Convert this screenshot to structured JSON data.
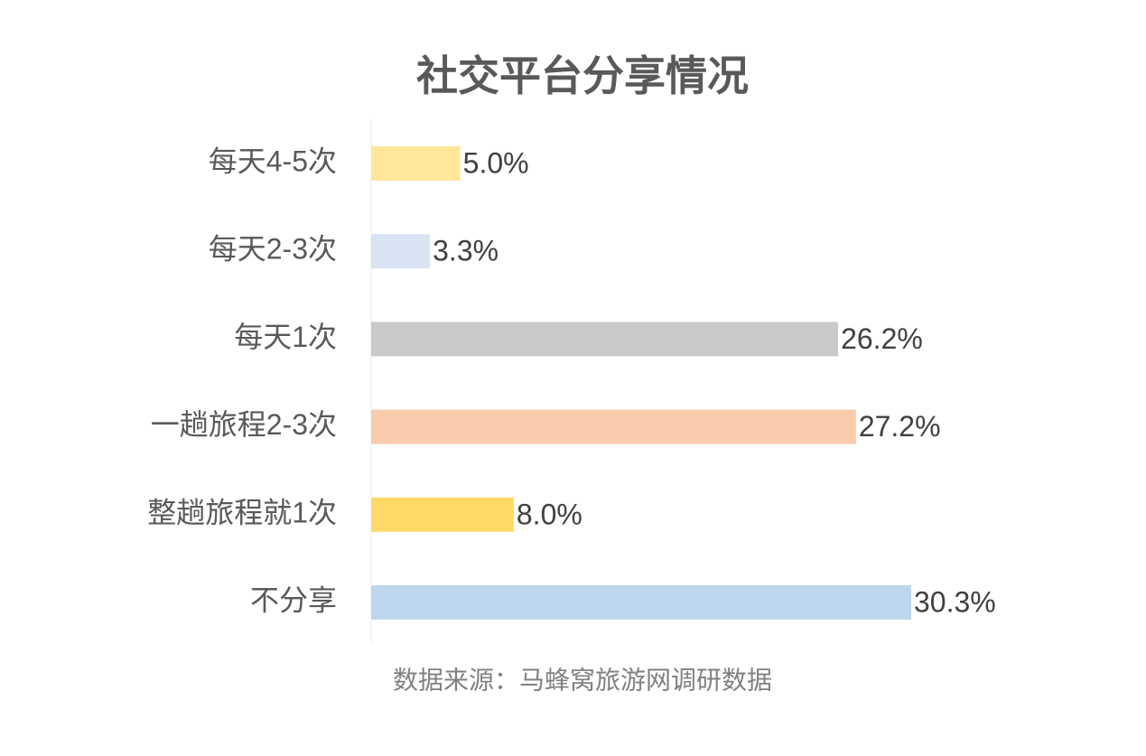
{
  "chart_data": {
    "type": "bar",
    "orientation": "horizontal",
    "title": "社交平台分享情况",
    "categories": [
      "每天4-5次",
      "每天2-3次",
      "每天1次",
      "一趟旅程2-3次",
      "整趟旅程就1次",
      "不分享"
    ],
    "values": [
      5.0,
      3.3,
      26.2,
      27.2,
      8.0,
      30.3
    ],
    "value_labels": [
      "5.0%",
      "3.3%",
      "26.2%",
      "27.2%",
      "8.0%",
      "30.3%"
    ],
    "colors": [
      "#FFE699",
      "#DAE3F3",
      "#C9C9C9",
      "#F8CBAD",
      "#FFD966",
      "#BDD7EE"
    ],
    "source": "数据来源：马蜂窝旅游网调研数据"
  }
}
